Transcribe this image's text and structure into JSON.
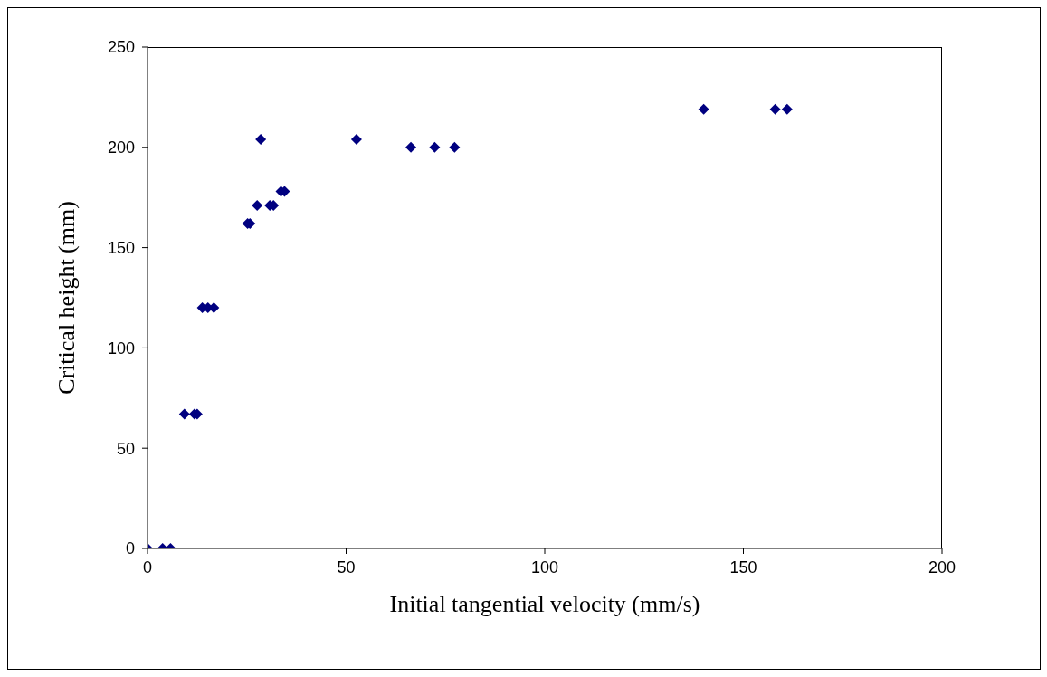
{
  "chart_data": {
    "type": "scatter",
    "xlabel": "Initial tangential velocity (mm/s)",
    "ylabel": "Critical height (mm)",
    "x": [
      0,
      3.8,
      5.8,
      9.3,
      11.8,
      12.5,
      13.8,
      15.2,
      16.7,
      25.2,
      25.8,
      27.6,
      28.5,
      30.8,
      31.7,
      33.6,
      34.5,
      52.6,
      66.3,
      72.3,
      77.3,
      140,
      158,
      161
    ],
    "series": [
      {
        "color": "#000080",
        "values": [
          0,
          0,
          0,
          67,
          67,
          67,
          120,
          120,
          120,
          162,
          162,
          171,
          204,
          171,
          171,
          178,
          178,
          204,
          200,
          200,
          200,
          219,
          219,
          219
        ]
      }
    ],
    "xlim": [
      0,
      200
    ],
    "xticks": [
      0,
      50,
      100,
      150,
      200
    ],
    "ylim": [
      0,
      250
    ],
    "yticks": [
      0,
      50,
      100,
      150,
      200,
      250
    ],
    "grid": false,
    "legend": false,
    "marker": "diamond"
  }
}
